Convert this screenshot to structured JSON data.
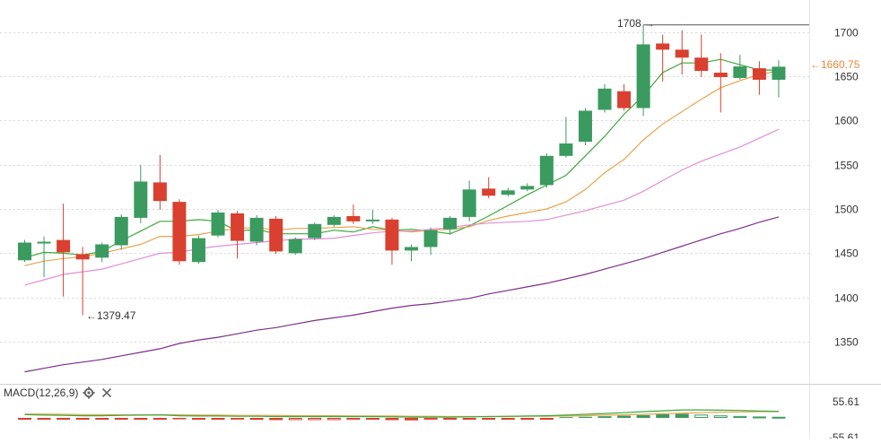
{
  "indicator": {
    "label": "MACD(12,26,9)",
    "settings_icon": "gear-icon",
    "close_icon": "close-icon"
  },
  "annotations": {
    "max_label": "1708",
    "max_arrow": "→",
    "min_label": "1379.47",
    "min_arrow": "←",
    "last_price_label": "1660.75",
    "last_price_arrow": "←"
  },
  "colors": {
    "up": "#3b9a5f",
    "down": "#d9402f",
    "ma_green": "#3da83b",
    "ma_orange": "#e8a44b",
    "ma_pink": "#e28ed9",
    "ma_purple": "#7d2e8a",
    "last_price": "#e8863a",
    "grid": "#d8d8d8",
    "axis_text": "#333333",
    "macd_line": "#3da83b",
    "signal_line": "#e8a44b"
  },
  "chart_data": [
    {
      "type": "candlestick",
      "title": "",
      "ylim": [
        1300,
        1720
      ],
      "y_ticks": [
        1350,
        1400,
        1450,
        1500,
        1550,
        1600,
        1650,
        1700
      ],
      "grid": true,
      "last_price": 1660.75,
      "max_price": 1708,
      "min_price": 1379.47,
      "candles": [
        {
          "open": 1442,
          "close": 1462,
          "high": 1465,
          "low": 1440
        },
        {
          "open": 1461,
          "close": 1463,
          "high": 1469,
          "low": 1423
        },
        {
          "open": 1465,
          "close": 1451,
          "high": 1506,
          "low": 1401
        },
        {
          "open": 1449,
          "close": 1443,
          "high": 1457,
          "low": 1380
        },
        {
          "open": 1445,
          "close": 1460,
          "high": 1462,
          "low": 1440
        },
        {
          "open": 1459,
          "close": 1491,
          "high": 1494,
          "low": 1454
        },
        {
          "open": 1490,
          "close": 1531,
          "high": 1550,
          "low": 1484
        },
        {
          "open": 1530,
          "close": 1509,
          "high": 1561,
          "low": 1499
        },
        {
          "open": 1508,
          "close": 1441,
          "high": 1511,
          "low": 1437
        },
        {
          "open": 1440,
          "close": 1467,
          "high": 1470,
          "low": 1438
        },
        {
          "open": 1470,
          "close": 1496,
          "high": 1499,
          "low": 1468
        },
        {
          "open": 1495,
          "close": 1464,
          "high": 1498,
          "low": 1444
        },
        {
          "open": 1463,
          "close": 1490,
          "high": 1493,
          "low": 1459
        },
        {
          "open": 1489,
          "close": 1452,
          "high": 1492,
          "low": 1449
        },
        {
          "open": 1450,
          "close": 1466,
          "high": 1468,
          "low": 1448
        },
        {
          "open": 1467,
          "close": 1483,
          "high": 1485,
          "low": 1465
        },
        {
          "open": 1482,
          "close": 1491,
          "high": 1493,
          "low": 1480
        },
        {
          "open": 1492,
          "close": 1486,
          "high": 1505,
          "low": 1483
        },
        {
          "open": 1486,
          "close": 1488,
          "high": 1499,
          "low": 1483
        },
        {
          "open": 1488,
          "close": 1453,
          "high": 1490,
          "low": 1437
        },
        {
          "open": 1453,
          "close": 1457,
          "high": 1460,
          "low": 1441
        },
        {
          "open": 1457,
          "close": 1476,
          "high": 1479,
          "low": 1448
        },
        {
          "open": 1477,
          "close": 1490,
          "high": 1492,
          "low": 1471
        },
        {
          "open": 1491,
          "close": 1522,
          "high": 1532,
          "low": 1486
        },
        {
          "open": 1523,
          "close": 1515,
          "high": 1536,
          "low": 1512
        },
        {
          "open": 1516,
          "close": 1521,
          "high": 1524,
          "low": 1514
        },
        {
          "open": 1522,
          "close": 1526,
          "high": 1529,
          "low": 1520
        },
        {
          "open": 1527,
          "close": 1560,
          "high": 1563,
          "low": 1524
        },
        {
          "open": 1560,
          "close": 1574,
          "high": 1604,
          "low": 1558
        },
        {
          "open": 1576,
          "close": 1611,
          "high": 1614,
          "low": 1572
        },
        {
          "open": 1612,
          "close": 1636,
          "high": 1641,
          "low": 1609
        },
        {
          "open": 1633,
          "close": 1614,
          "high": 1641,
          "low": 1611
        },
        {
          "open": 1614,
          "close": 1686,
          "high": 1708,
          "low": 1605
        },
        {
          "open": 1687,
          "close": 1680,
          "high": 1697,
          "low": 1644
        },
        {
          "open": 1680,
          "close": 1671,
          "high": 1702,
          "low": 1652
        },
        {
          "open": 1671,
          "close": 1656,
          "high": 1697,
          "low": 1649
        },
        {
          "open": 1654,
          "close": 1649,
          "high": 1676,
          "low": 1609
        },
        {
          "open": 1648,
          "close": 1661,
          "high": 1674,
          "low": 1646
        },
        {
          "open": 1659,
          "close": 1646,
          "high": 1667,
          "low": 1629
        },
        {
          "open": 1646,
          "close": 1660.75,
          "high": 1668,
          "low": 1626
        }
      ],
      "moving_averages": [
        {
          "color": "ma_green",
          "values": [
            1445,
            1451,
            1450,
            1448,
            1452,
            1464,
            1475,
            1486,
            1486,
            1488,
            1486,
            1475,
            1477,
            1472,
            1472,
            1472,
            1476,
            1474,
            1480,
            1476,
            1477,
            1475,
            1472,
            1481,
            1492,
            1504,
            1516,
            1527,
            1538,
            1560,
            1582,
            1607,
            1628,
            1654,
            1665,
            1665,
            1669,
            1663,
            1657,
            1657
          ]
        },
        {
          "color": "ma_orange",
          "values": [
            1436,
            1441,
            1444,
            1446,
            1450,
            1455,
            1460,
            1469,
            1469,
            1471,
            1475,
            1478,
            1479,
            1476,
            1478,
            1478,
            1479,
            1480,
            1477,
            1476,
            1474,
            1476,
            1477,
            1480,
            1487,
            1492,
            1496,
            1500,
            1508,
            1522,
            1541,
            1556,
            1578,
            1596,
            1610,
            1624,
            1637,
            1645,
            1652,
            1656
          ]
        },
        {
          "color": "ma_pink",
          "values": [
            1414,
            1420,
            1426,
            1429,
            1432,
            1438,
            1444,
            1450,
            1451,
            1455,
            1458,
            1460,
            1462,
            1464,
            1466,
            1466,
            1467,
            1470,
            1473,
            1475,
            1475,
            1477,
            1479,
            1482,
            1484,
            1485,
            1486,
            1488,
            1493,
            1498,
            1504,
            1510,
            1520,
            1532,
            1544,
            1554,
            1562,
            1570,
            1580,
            1590
          ]
        },
        {
          "color": "ma_purple",
          "values": [
            1316,
            1320,
            1324,
            1327,
            1330,
            1334,
            1338,
            1342,
            1348,
            1352,
            1355,
            1359,
            1363,
            1366,
            1370,
            1374,
            1377,
            1380,
            1384,
            1388,
            1391,
            1393,
            1396,
            1399,
            1404,
            1408,
            1412,
            1416,
            1421,
            1426,
            1432,
            1438,
            1444,
            1451,
            1458,
            1465,
            1472,
            1478,
            1485,
            1491
          ]
        }
      ]
    },
    {
      "type": "bar",
      "title": "MACD(12,26,9)",
      "ylim": [
        -55.61,
        55.61
      ],
      "y_tick_labels": [
        "55.61",
        "-55.61"
      ],
      "series": [
        {
          "name": "histogram",
          "values": [
            -4,
            -4,
            -4,
            -4,
            -4,
            -4,
            -3,
            -2,
            -5,
            -5,
            -4,
            -6,
            -7,
            -8,
            -8,
            -8,
            -8,
            -7,
            -6,
            -8,
            -9,
            -7,
            -6,
            -4,
            -3,
            -2,
            -2,
            -1,
            3,
            4,
            6,
            8,
            10,
            13,
            15,
            12,
            9,
            7,
            5,
            4
          ]
        },
        {
          "name": "macd",
          "values": [
            12,
            10,
            9,
            8,
            8,
            9,
            10,
            11,
            8,
            7,
            7,
            6,
            6,
            5,
            5,
            5,
            5,
            5,
            5,
            4,
            3,
            3,
            3,
            4,
            5,
            6,
            7,
            8,
            10,
            13,
            16,
            19,
            23,
            26,
            29,
            29,
            28,
            27,
            25,
            24
          ]
        },
        {
          "name": "signal",
          "values": [
            14,
            14,
            13,
            12,
            12,
            11,
            11,
            11,
            11,
            10,
            10,
            9,
            9,
            9,
            8,
            8,
            8,
            7,
            7,
            7,
            6,
            6,
            5,
            5,
            5,
            5,
            6,
            6,
            7,
            8,
            10,
            11,
            13,
            15,
            17,
            19,
            21,
            22,
            23,
            23
          ]
        }
      ]
    }
  ]
}
